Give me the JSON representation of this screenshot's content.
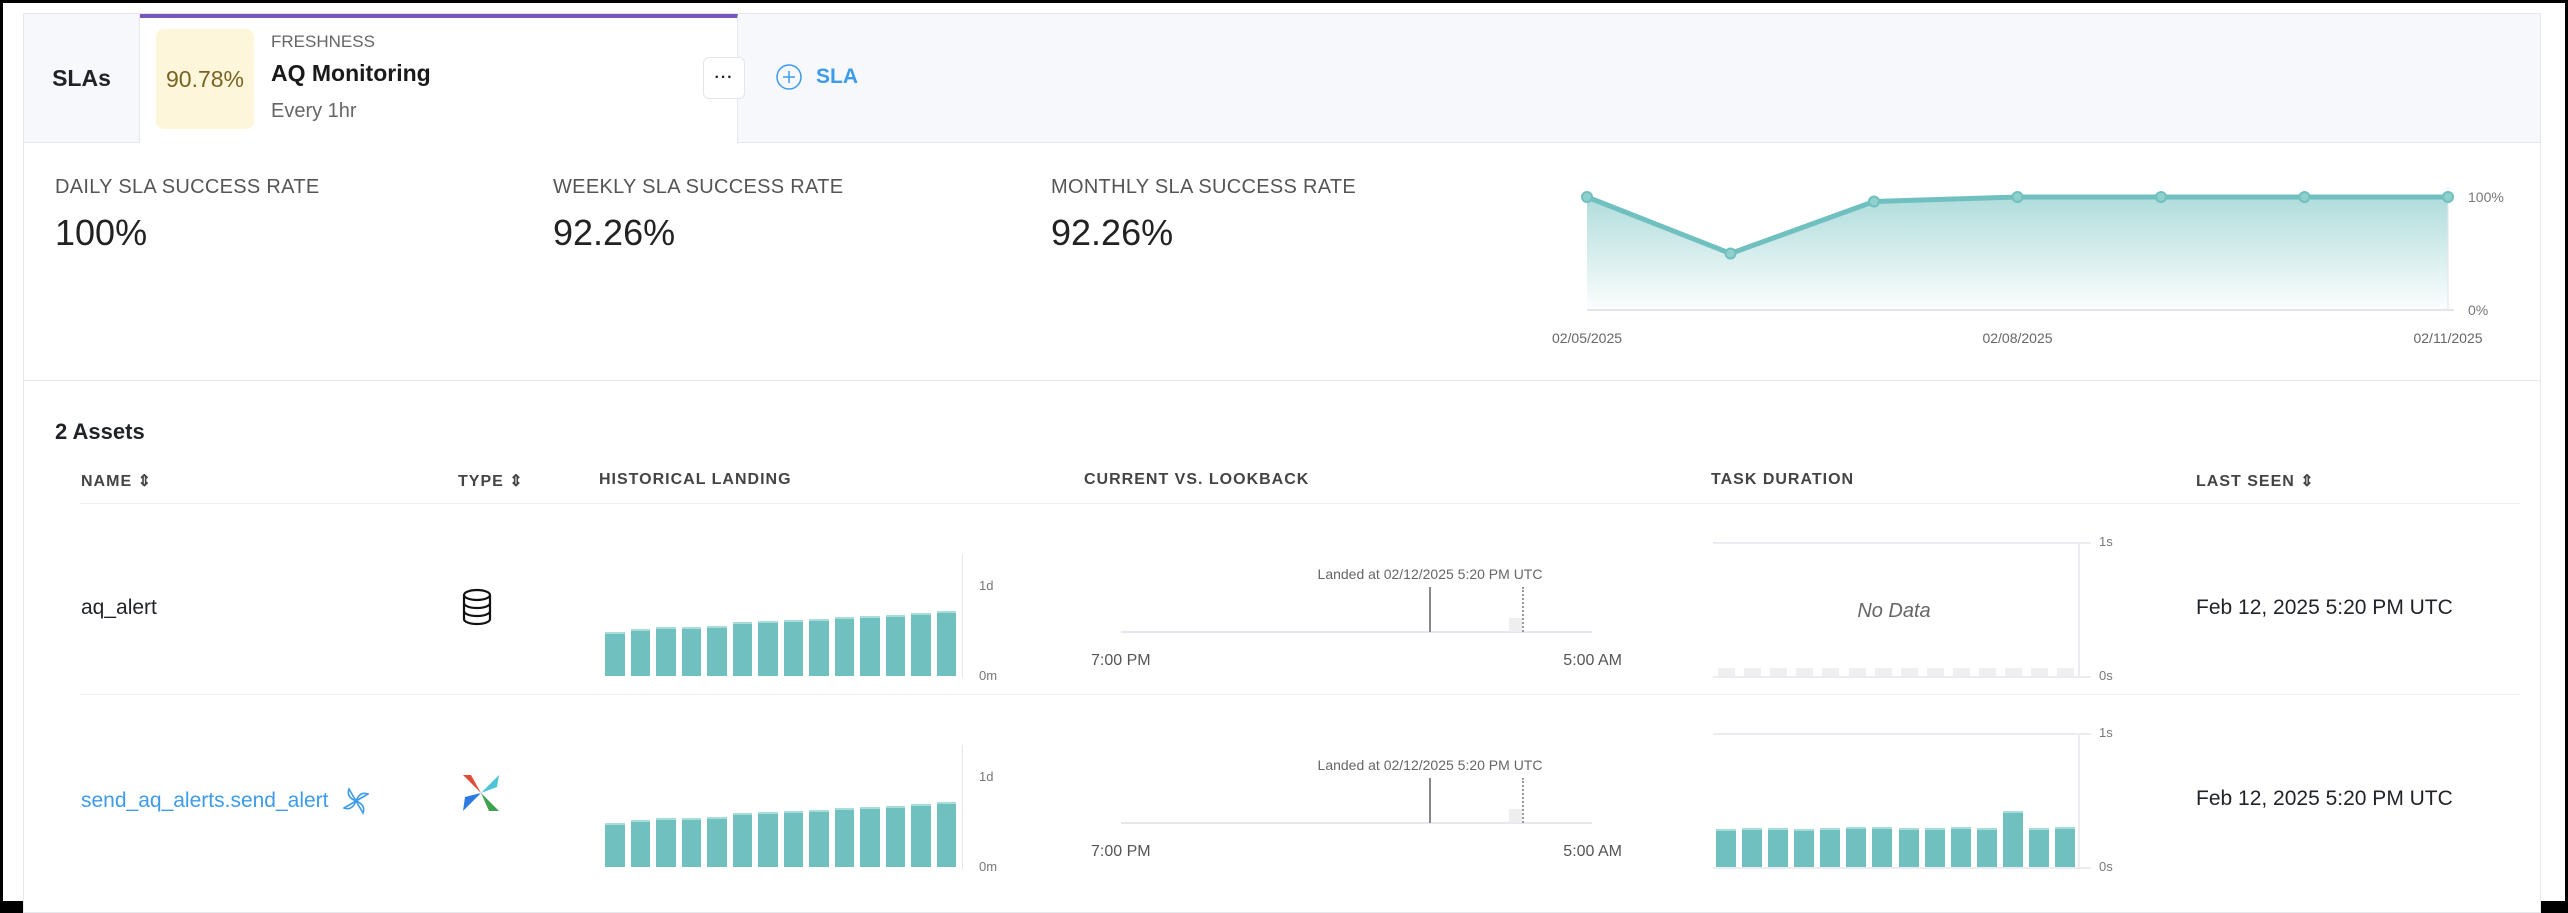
{
  "tabs": {
    "slas_label": "SLAs",
    "active": {
      "score": "90.78%",
      "category": "FRESHNESS",
      "name": "AQ Monitoring",
      "schedule": "Every 1hr",
      "more_label": "···"
    },
    "add_label": "SLA"
  },
  "metrics": [
    {
      "label": "DAILY SLA SUCCESS RATE",
      "value": "100%"
    },
    {
      "label": "WEEKLY SLA SUCCESS RATE",
      "value": "92.26%"
    },
    {
      "label": "MONTHLY SLA SUCCESS RATE",
      "value": "92.26%"
    }
  ],
  "colors": {
    "accent": "#7756bd",
    "teal": "#6fc0bf",
    "link": "#3d9be9",
    "score_bg": "#fdf6da"
  },
  "chart_data": [
    {
      "type": "area",
      "x": [
        "02/05/2025",
        "02/06/2025",
        "02/07/2025",
        "02/08/2025",
        "02/09/2025",
        "02/10/2025",
        "02/11/2025"
      ],
      "values": [
        100,
        50,
        96,
        100,
        100,
        100,
        100
      ],
      "x_tick_labels": [
        "02/05/2025",
        "02/08/2025",
        "02/11/2025"
      ],
      "y_tick_labels": [
        "100%",
        "0%"
      ],
      "ylim": [
        0,
        100
      ],
      "grid": false
    },
    {
      "type": "bar",
      "asset": "aq_alert",
      "chart": "historical_landing",
      "unit": "d",
      "values": [
        0.49,
        0.52,
        0.54,
        0.55,
        0.56,
        0.6,
        0.61,
        0.62,
        0.63,
        0.66,
        0.67,
        0.68,
        0.7,
        0.72
      ],
      "y_tick_labels": [
        "1d",
        "0m"
      ],
      "ylim": [
        0,
        1
      ]
    },
    {
      "type": "bar",
      "asset": "send_aq_alerts.send_alert",
      "chart": "historical_landing",
      "unit": "d",
      "values": [
        0.49,
        0.52,
        0.54,
        0.55,
        0.56,
        0.6,
        0.61,
        0.62,
        0.63,
        0.66,
        0.67,
        0.68,
        0.7,
        0.72
      ],
      "y_tick_labels": [
        "1d",
        "0m"
      ],
      "ylim": [
        0,
        1
      ]
    },
    {
      "type": "bar",
      "asset": "send_aq_alerts.send_alert",
      "chart": "task_duration",
      "unit": "s",
      "values": [
        0.28,
        0.29,
        0.29,
        0.28,
        0.29,
        0.3,
        0.3,
        0.29,
        0.29,
        0.3,
        0.29,
        0.42,
        0.29,
        0.3
      ],
      "y_tick_labels": [
        "1s",
        "0s"
      ],
      "ylim": [
        0,
        1
      ]
    }
  ],
  "assets": {
    "title": "2 Assets",
    "columns": [
      "NAME",
      "TYPE",
      "HISTORICAL LANDING",
      "CURRENT VS. LOOKBACK",
      "TASK DURATION",
      "LAST SEEN"
    ],
    "rows": [
      {
        "name": "aq_alert",
        "type_icon": "database-icon",
        "landed": "Landed at 02/12/2025 5:20 PM UTC",
        "lookback_start": "7:00 PM",
        "lookback_end": "5:00 AM",
        "duration_no_data": "No Data",
        "last_seen": "Feb 12, 2025 5:20 PM UTC"
      },
      {
        "name": "send_aq_alerts.send_alert",
        "type_icon": "airflow-icon",
        "landed": "Landed at 02/12/2025 5:20 PM UTC",
        "lookback_start": "7:00 PM",
        "lookback_end": "5:00 AM",
        "last_seen": "Feb 12, 2025 5:20 PM UTC"
      }
    ],
    "ticks": {
      "d1": "1d",
      "m0": "0m",
      "s1": "1s",
      "s0": "0s",
      "p100": "100%",
      "p0": "0%"
    }
  }
}
